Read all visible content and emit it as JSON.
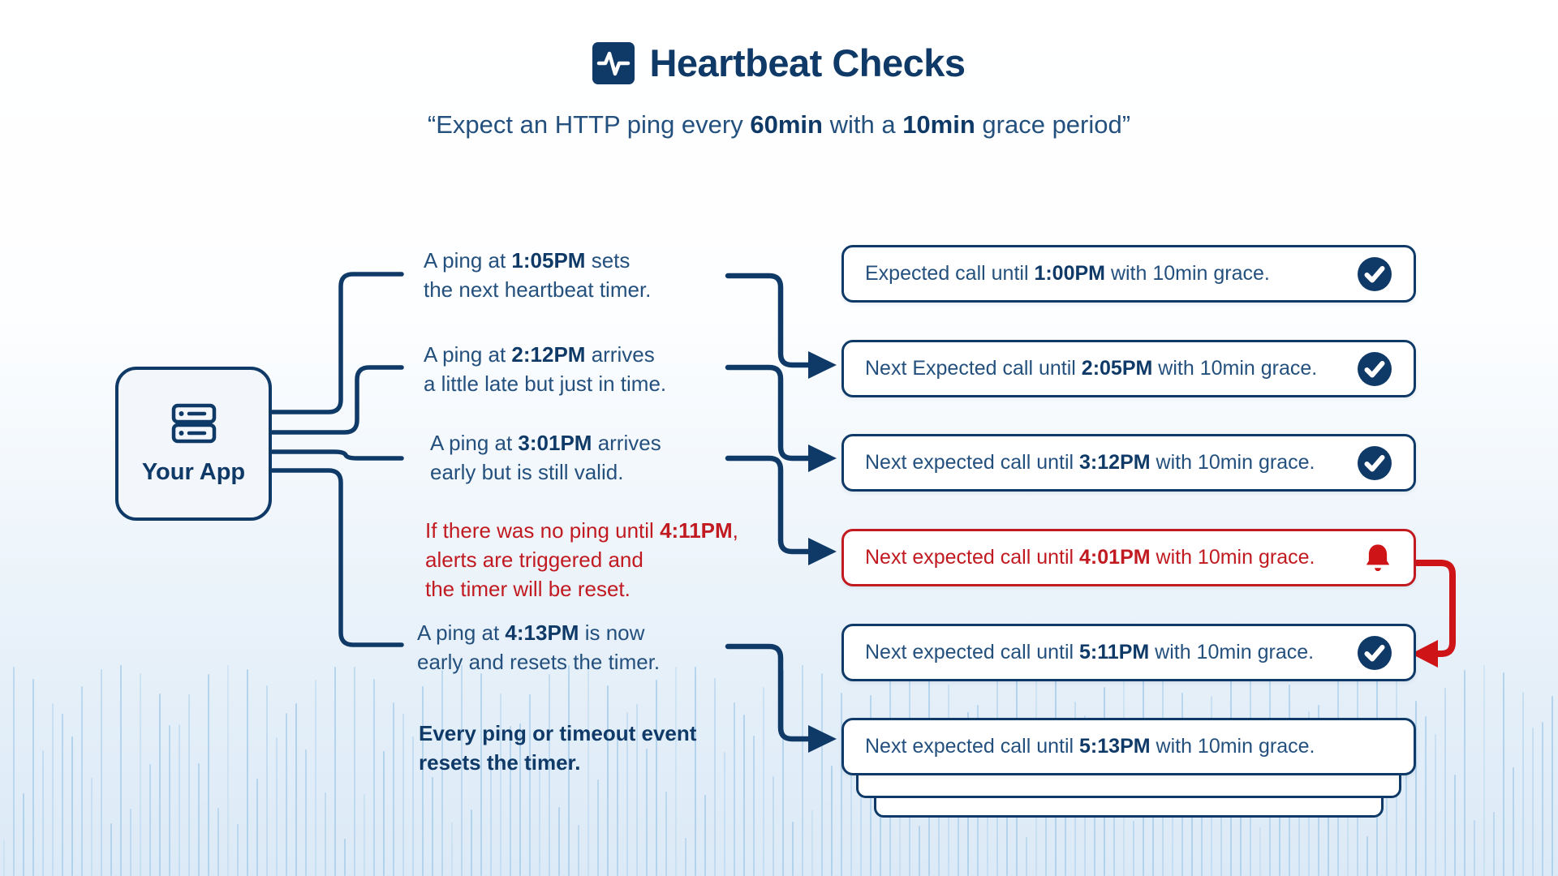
{
  "header": {
    "title": "Heartbeat Checks",
    "subtitle": "“Expect an HTTP ping every **60min** with a **10min** grace period”",
    "icon": "heartbeat-icon"
  },
  "app": {
    "label": "Your App",
    "icon": "server-icon"
  },
  "events": [
    {
      "text": "A ping at **1:05PM** sets\nthe next heartbeat timer.",
      "tone": "normal"
    },
    {
      "text": "A ping at **2:12PM** arrives\na little late but just in time.",
      "tone": "normal"
    },
    {
      "text": "A ping at **3:01PM** arrives\nearly but is still valid.",
      "tone": "normal"
    },
    {
      "text": "If there was no ping until **4:11PM**,\nalerts are triggered and\nthe timer will be reset.",
      "tone": "alert"
    },
    {
      "text": "A ping at **4:13PM** is now\nearly and resets the timer.",
      "tone": "normal"
    },
    {
      "text": "**Every ping or timeout event**\n**resets the timer.**",
      "tone": "emphasis"
    }
  ],
  "timers": [
    {
      "text": "Expected call until **1:00PM** with 10min grace.",
      "icon": "check",
      "status": "ok"
    },
    {
      "text": "Next Expected call until **2:05PM** with 10min grace.",
      "icon": "check",
      "status": "ok"
    },
    {
      "text": "Next expected call until **3:12PM** with 10min grace.",
      "icon": "check",
      "status": "ok"
    },
    {
      "text": "Next expected call until **4:01PM** with 10min grace.",
      "icon": "bell",
      "status": "alert"
    },
    {
      "text": "Next expected call until **5:11PM** with 10min grace.",
      "icon": "check",
      "status": "ok"
    },
    {
      "text": "Next expected call until **5:13PM** with 10min grace.",
      "icon": "none",
      "status": "pending"
    }
  ],
  "colors": {
    "navy": "#0f3a68",
    "navy_text": "#24507e",
    "red": "#c11a20",
    "red_bright": "#cf1418",
    "wave_bar": "#a6cce9",
    "app_box_bg": "#f3f6fa",
    "card_bg": "#ffffff"
  }
}
